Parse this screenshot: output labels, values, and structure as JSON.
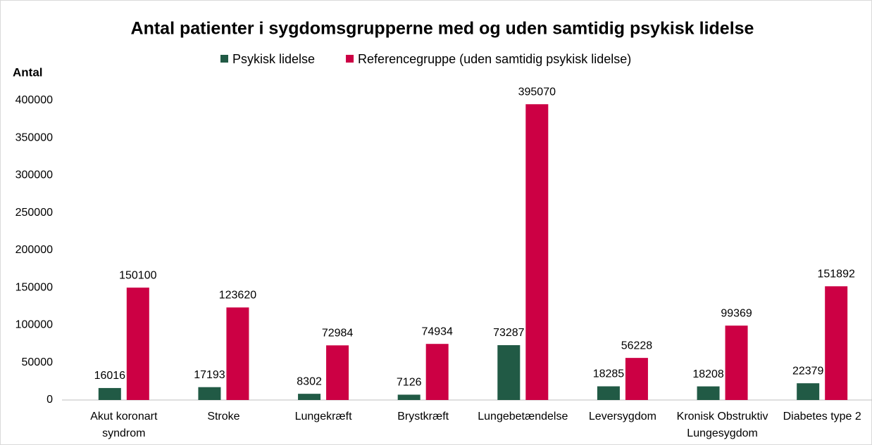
{
  "chart_data": {
    "type": "bar",
    "title": "Antal patienter i sygdomsgrupperne med og uden samtidig psykisk lidelse",
    "y_label": "Antal",
    "categories": [
      "Akut koronart syndrom",
      "Stroke",
      "Lungekræft",
      "Brystkræft",
      "Lungebetændelse",
      "Leversygdom",
      "Kronisk Obstruktiv Lungesygdom",
      "Diabetes type 2"
    ],
    "series": [
      {
        "name": "Psykisk lidelse",
        "color": "#215a45",
        "values": [
          16016,
          17193,
          8302,
          7126,
          73287,
          18285,
          18208,
          22379
        ]
      },
      {
        "name": "Referencegruppe (uden samtidig psykisk lidelse)",
        "color": "#cc0044",
        "values": [
          150100,
          123620,
          72984,
          74934,
          395070,
          56228,
          99369,
          151892
        ]
      }
    ],
    "ylim": [
      0,
      400000
    ],
    "yticks": [
      0,
      50000,
      100000,
      150000,
      200000,
      250000,
      300000,
      350000,
      400000
    ],
    "grid": false,
    "legend": "top"
  }
}
